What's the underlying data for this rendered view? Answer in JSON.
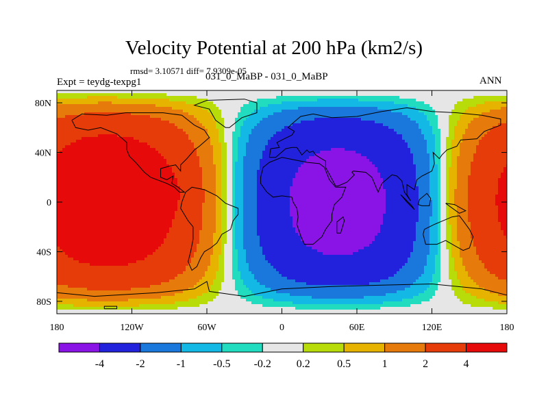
{
  "chart_data": {
    "type": "heatmap",
    "title": "Velocity Potential at 200 hPa (km2/s)",
    "stats_text": "rmsd= 3.10571  diff= 7.9309e-05",
    "left_subtitle": "Expt = teydg-texpg1",
    "center_subtitle": "031_0_MaBP - 031_0_MaBP",
    "right_subtitle": "ANN",
    "x_range": [
      -180,
      180
    ],
    "y_range": [
      -90,
      90
    ],
    "x_ticks": [
      {
        "value": -180,
        "label": "180"
      },
      {
        "value": -120,
        "label": "120W"
      },
      {
        "value": -60,
        "label": "60W"
      },
      {
        "value": 0,
        "label": "0"
      },
      {
        "value": 60,
        "label": "60E"
      },
      {
        "value": 120,
        "label": "120E"
      },
      {
        "value": 180,
        "label": "180"
      }
    ],
    "y_ticks": [
      {
        "value": 80,
        "label": "80N"
      },
      {
        "value": 40,
        "label": "40N"
      },
      {
        "value": 0,
        "label": "0"
      },
      {
        "value": -40,
        "label": "40S"
      },
      {
        "value": -80,
        "label": "80S"
      }
    ],
    "contour_levels": [
      "-4",
      "-2",
      "-1",
      "-0.5",
      "-0.2",
      "0.2",
      "0.5",
      "1",
      "2",
      "4"
    ],
    "colors": [
      "#8a14e6",
      "#2222dd",
      "#1a78dc",
      "#13b8e4",
      "#22dcc0",
      "#e6e6e6",
      "#b8dc0a",
      "#e6b400",
      "#e67a0a",
      "#e63c0a",
      "#e60a0a"
    ],
    "field_features": [
      {
        "kind": "minimum",
        "lon": 45,
        "lat": 0,
        "approx_value": -5,
        "region": "Africa / Indian Ocean"
      },
      {
        "kind": "maximum",
        "lon": -170,
        "lat": 5,
        "approx_value": 5,
        "region": "central Pacific (west side)"
      },
      {
        "kind": "maximum",
        "lon": 175,
        "lat": 5,
        "approx_value": 5,
        "region": "central Pacific (east side)"
      }
    ]
  }
}
